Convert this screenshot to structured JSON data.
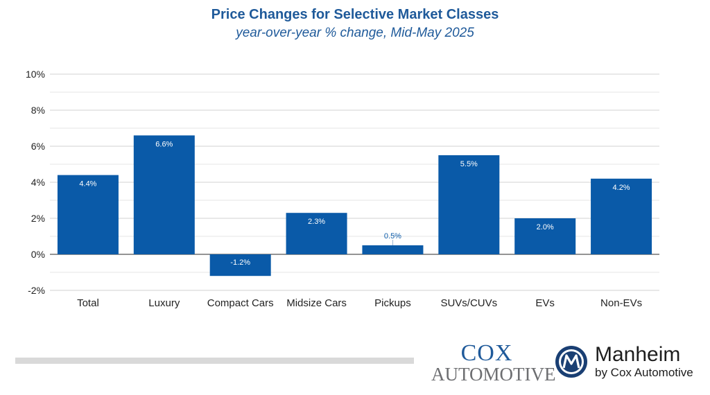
{
  "chart_data": {
    "type": "bar",
    "title": "Price Changes for Selective Market Classes",
    "subtitle": "year-over-year % change, Mid-May 2025",
    "categories": [
      "Total",
      "Luxury",
      "Compact Cars",
      "Midsize Cars",
      "Pickups",
      "SUVs/CUVs",
      "EVs",
      "Non-EVs"
    ],
    "values": [
      4.4,
      6.6,
      -1.2,
      2.3,
      0.5,
      5.5,
      2.0,
      4.2
    ],
    "value_labels": [
      "4.4%",
      "6.6%",
      "-1.2%",
      "2.3%",
      "0.5%",
      "5.5%",
      "2.0%",
      "4.2%"
    ],
    "yticks": [
      -2,
      0,
      2,
      4,
      6,
      8,
      10
    ],
    "ytick_labels": [
      "-2%",
      "0%",
      "2%",
      "4%",
      "6%",
      "8%",
      "10%"
    ],
    "ylim": [
      -2,
      10
    ],
    "grid": true,
    "bar_color": "#0a5aa8",
    "label_color_inside": "#ffffff",
    "label_color_outside": "#0a5aa8"
  },
  "branding": {
    "cox_top": "COX",
    "cox_bottom": "AUTOMOTIVE",
    "manheim_name": "Manheim",
    "manheim_sub": "by Cox Automotive"
  }
}
